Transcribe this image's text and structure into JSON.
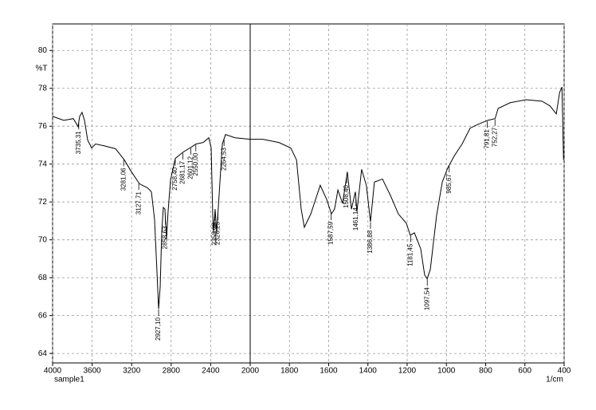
{
  "chart_data": {
    "type": "line",
    "y_label": "%T",
    "x_unit": "1/cm",
    "x": [
      4000,
      3887,
      3790,
      3742,
      3726,
      3702,
      3677,
      3645,
      3605,
      3565,
      3484,
      3363,
      3274,
      3202,
      3121,
      3040,
      3000,
      2968,
      2944,
      2927,
      2911,
      2895,
      2879,
      2863,
      2847,
      2831,
      2806,
      2758,
      2677,
      2597,
      2548,
      2476,
      2419,
      2395,
      2379,
      2371,
      2355,
      2339,
      2315,
      2282,
      2250,
      2153,
      2000,
      1935,
      1854,
      1793,
      1764,
      1740,
      1724,
      1691,
      1643,
      1610,
      1586,
      1570,
      1553,
      1529,
      1505,
      1484,
      1464,
      1456,
      1432,
      1408,
      1387,
      1367,
      1326,
      1285,
      1245,
      1204,
      1184,
      1163,
      1131,
      1111,
      1098,
      1082,
      1050,
      1021,
      993,
      960,
      920,
      879,
      838,
      789,
      752,
      736,
      675,
      594,
      513,
      472,
      440,
      423,
      411,
      403
    ],
    "series": [
      {
        "name": "sample1",
        "color": "#000000",
        "values": [
          76.52,
          76.31,
          76.4,
          75.98,
          76.52,
          76.73,
          76.31,
          75.27,
          74.85,
          75.06,
          74.97,
          74.81,
          74.22,
          73.59,
          72.96,
          72.75,
          72.54,
          71.08,
          68.36,
          66.35,
          67.52,
          70.45,
          71.71,
          71.62,
          70.03,
          71.5,
          73.17,
          74.3,
          74.64,
          74.89,
          75.06,
          75.14,
          75.39,
          74.85,
          71.29,
          70.37,
          71.62,
          70.37,
          72.34,
          75.06,
          75.56,
          75.39,
          75.31,
          75.31,
          75.14,
          74.85,
          74.22,
          71.62,
          70.66,
          71.37,
          72.88,
          72.13,
          71.37,
          71.62,
          72.63,
          71.92,
          73.59,
          71.62,
          72.54,
          71.5,
          73.72,
          72.88,
          70.95,
          73.05,
          73.21,
          72.34,
          71.37,
          70.87,
          70.24,
          70.37,
          69.53,
          68.15,
          67.94,
          68.44,
          71.29,
          73.05,
          73.8,
          74.43,
          75.06,
          75.9,
          76.1,
          76.31,
          76.4,
          76.94,
          77.24,
          77.4,
          77.32,
          77.07,
          76.65,
          77.78,
          78.07,
          74.22
        ]
      }
    ],
    "annotations": [
      {
        "x": 3735.31,
        "label": "3735,31"
      },
      {
        "x": 3281.06,
        "label": "3281,06"
      },
      {
        "x": 3127.71,
        "label": "3127,71"
      },
      {
        "x": 2927.1,
        "label": "2927,10"
      },
      {
        "x": 2858.63,
        "label": "2858,63"
      },
      {
        "x": 2758.4,
        "label": "2758,40"
      },
      {
        "x": 2681.17,
        "label": "2681,17"
      },
      {
        "x": 2601.12,
        "label": "2601,12"
      },
      {
        "x": 2550.0,
        "label": "2550,00"
      },
      {
        "x": 2358.08,
        "label": "2358,08"
      },
      {
        "x": 2326.25,
        "label": "2326,25"
      },
      {
        "x": 2264.53,
        "label": "2264,53"
      },
      {
        "x": 1587.59,
        "label": "1587,59"
      },
      {
        "x": 1508.4,
        "label": "1508,40"
      },
      {
        "x": 1461.14,
        "label": "1461,14"
      },
      {
        "x": 1386.88,
        "label": "1386,88"
      },
      {
        "x": 1181.45,
        "label": "1181,45"
      },
      {
        "x": 1097.54,
        "label": "1097,54"
      },
      {
        "x": 985.67,
        "label": "985,67"
      },
      {
        "x": 791.81,
        "label": "791,81"
      },
      {
        "x": 752.27,
        "label": "752,27"
      }
    ],
    "xlim": [
      4000,
      400
    ],
    "x_break": 2000,
    "xticks": [
      4000,
      3600,
      3200,
      2800,
      2400,
      2000,
      1800,
      1600,
      1400,
      1200,
      1000,
      800,
      600,
      400
    ],
    "ylim": [
      63.5,
      81.4
    ],
    "yticks": [
      64,
      66,
      68,
      70,
      72,
      74,
      76,
      78,
      80
    ],
    "grid": true
  }
}
